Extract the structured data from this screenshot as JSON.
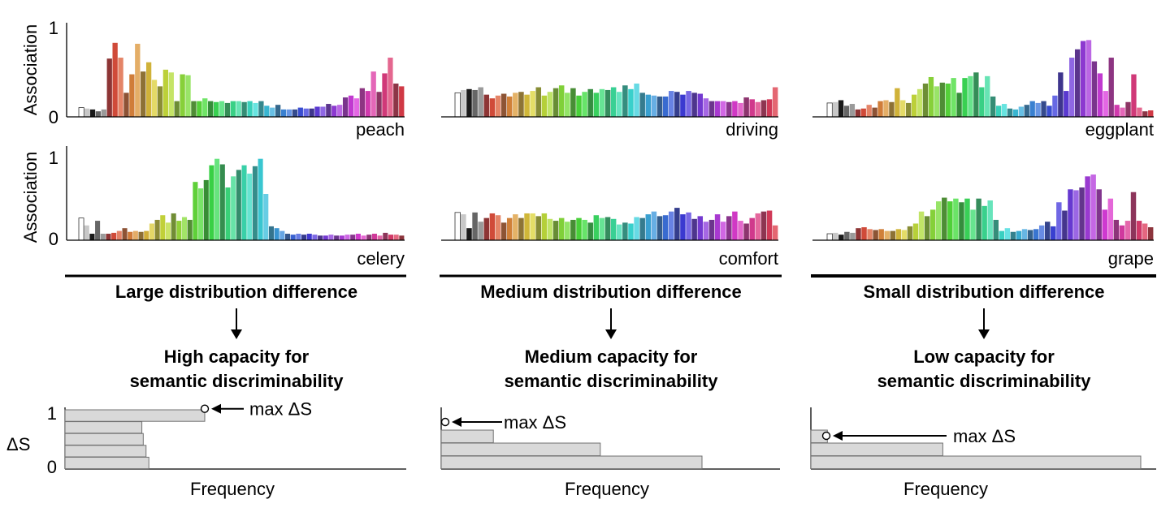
{
  "chart_data": [
    {
      "type": "bar",
      "word": "peach",
      "ylabel": "Association",
      "ylim": [
        0,
        1
      ],
      "yticks": [
        "0",
        "1"
      ],
      "values": [
        0.1,
        0.09,
        0.08,
        0.06,
        0.08,
        0.63,
        0.8,
        0.64,
        0.26,
        0.46,
        0.79,
        0.49,
        0.59,
        0.4,
        0.33,
        0.51,
        0.48,
        0.17,
        0.46,
        0.45,
        0.17,
        0.17,
        0.2,
        0.17,
        0.16,
        0.17,
        0.15,
        0.17,
        0.17,
        0.16,
        0.17,
        0.15,
        0.17,
        0.12,
        0.1,
        0.13,
        0.08,
        0.08,
        0.08,
        0.1,
        0.09,
        0.09,
        0.11,
        0.11,
        0.14,
        0.12,
        0.13,
        0.21,
        0.23,
        0.2,
        0.31,
        0.28,
        0.49,
        0.27,
        0.47,
        0.64,
        0.36,
        0.33
      ]
    },
    {
      "type": "bar",
      "word": "driving",
      "ylim": [
        0,
        1
      ],
      "values": [
        0.26,
        0.29,
        0.3,
        0.29,
        0.32,
        0.24,
        0.2,
        0.23,
        0.25,
        0.22,
        0.26,
        0.27,
        0.24,
        0.28,
        0.32,
        0.23,
        0.27,
        0.31,
        0.34,
        0.26,
        0.31,
        0.23,
        0.27,
        0.3,
        0.26,
        0.3,
        0.29,
        0.32,
        0.27,
        0.34,
        0.3,
        0.36,
        0.26,
        0.24,
        0.23,
        0.22,
        0.22,
        0.28,
        0.27,
        0.24,
        0.28,
        0.26,
        0.25,
        0.2,
        0.17,
        0.17,
        0.17,
        0.16,
        0.17,
        0.15,
        0.21,
        0.19,
        0.16,
        0.18,
        0.19,
        0.32
      ]
    },
    {
      "type": "bar",
      "word": "eggplant",
      "ylim": [
        0,
        1
      ],
      "values": [
        0.15,
        0.16,
        0.18,
        0.12,
        0.14,
        0.08,
        0.09,
        0.13,
        0.1,
        0.17,
        0.18,
        0.16,
        0.31,
        0.18,
        0.15,
        0.24,
        0.3,
        0.36,
        0.43,
        0.33,
        0.37,
        0.36,
        0.42,
        0.26,
        0.42,
        0.44,
        0.48,
        0.32,
        0.44,
        0.22,
        0.12,
        0.14,
        0.09,
        0.08,
        0.11,
        0.13,
        0.17,
        0.15,
        0.17,
        0.12,
        0.23,
        0.48,
        0.28,
        0.64,
        0.73,
        0.82,
        0.83,
        0.6,
        0.47,
        0.28,
        0.64,
        0.13,
        0.1,
        0.16,
        0.46,
        0.1,
        0.06,
        0.07
      ]
    },
    {
      "type": "bar",
      "word": "celery",
      "ylabel": "Association",
      "ylim": [
        0,
        1
      ],
      "yticks": [
        "0",
        "1"
      ],
      "values": [
        0.24,
        0.16,
        0.07,
        0.21,
        0.07,
        0.07,
        0.08,
        0.1,
        0.13,
        0.09,
        0.1,
        0.09,
        0.1,
        0.18,
        0.22,
        0.27,
        0.19,
        0.29,
        0.21,
        0.25,
        0.22,
        0.63,
        0.56,
        0.65,
        0.81,
        0.88,
        0.82,
        0.57,
        0.69,
        0.76,
        0.81,
        0.72,
        0.8,
        0.88,
        0.5,
        0.15,
        0.13,
        0.1,
        0.07,
        0.06,
        0.07,
        0.06,
        0.07,
        0.06,
        0.05,
        0.05,
        0.06,
        0.05,
        0.05,
        0.06,
        0.06,
        0.07,
        0.05,
        0.06,
        0.07,
        0.05,
        0.08,
        0.06,
        0.06,
        0.05
      ]
    },
    {
      "type": "bar",
      "word": "comfort",
      "ylim": [
        0,
        1
      ],
      "values": [
        0.3,
        0.28,
        0.13,
        0.3,
        0.2,
        0.24,
        0.29,
        0.27,
        0.19,
        0.24,
        0.28,
        0.24,
        0.29,
        0.29,
        0.26,
        0.29,
        0.23,
        0.21,
        0.24,
        0.2,
        0.22,
        0.24,
        0.22,
        0.19,
        0.27,
        0.24,
        0.25,
        0.23,
        0.17,
        0.19,
        0.18,
        0.25,
        0.24,
        0.28,
        0.31,
        0.26,
        0.27,
        0.31,
        0.35,
        0.28,
        0.3,
        0.23,
        0.26,
        0.2,
        0.22,
        0.28,
        0.2,
        0.26,
        0.31,
        0.21,
        0.18,
        0.24,
        0.29,
        0.31,
        0.32,
        0.16
      ]
    },
    {
      "type": "bar",
      "word": "grape",
      "ylim": [
        0,
        1
      ],
      "values": [
        0.07,
        0.08,
        0.06,
        0.09,
        0.08,
        0.13,
        0.14,
        0.12,
        0.11,
        0.12,
        0.1,
        0.1,
        0.12,
        0.11,
        0.15,
        0.18,
        0.31,
        0.26,
        0.33,
        0.42,
        0.46,
        0.42,
        0.45,
        0.41,
        0.45,
        0.33,
        0.45,
        0.37,
        0.43,
        0.22,
        0.1,
        0.13,
        0.09,
        0.1,
        0.12,
        0.11,
        0.12,
        0.16,
        0.2,
        0.15,
        0.41,
        0.32,
        0.55,
        0.54,
        0.57,
        0.69,
        0.71,
        0.55,
        0.33,
        0.45,
        0.22,
        0.16,
        0.21,
        0.52,
        0.21,
        0.18,
        0.14
      ]
    }
  ],
  "columns": [
    {
      "distribution": "Large distribution difference",
      "capacity_line1": "High capacity for",
      "capacity_line2": "semantic discriminability"
    },
    {
      "distribution": "Medium distribution difference",
      "capacity_line1": "Medium capacity for",
      "capacity_line2": "semantic discriminability"
    },
    {
      "distribution": "Small distribution difference",
      "capacity_line1": "Low capacity for",
      "capacity_line2": "semantic discriminability"
    }
  ],
  "histograms": [
    {
      "type": "bar",
      "orientation": "horizontal",
      "ylabel": "ΔS",
      "yticks": [
        "0",
        "1"
      ],
      "xlabel": "Frequency",
      "frequencies": [
        0.6,
        0.58,
        0.56,
        0.55,
        1.0
      ],
      "max_delta_s": 0.95,
      "max_label": "max ΔS"
    },
    {
      "type": "bar",
      "orientation": "horizontal",
      "xlabel": "Frequency",
      "frequencies": [
        1.0,
        0.61,
        0.2
      ],
      "max_delta_s": 0.73,
      "max_label": "max ΔS"
    },
    {
      "type": "bar",
      "orientation": "horizontal",
      "xlabel": "Frequency",
      "frequencies": [
        1.0,
        0.4,
        0.05
      ],
      "max_delta_s": 0.5,
      "max_label": "max ΔS"
    }
  ]
}
